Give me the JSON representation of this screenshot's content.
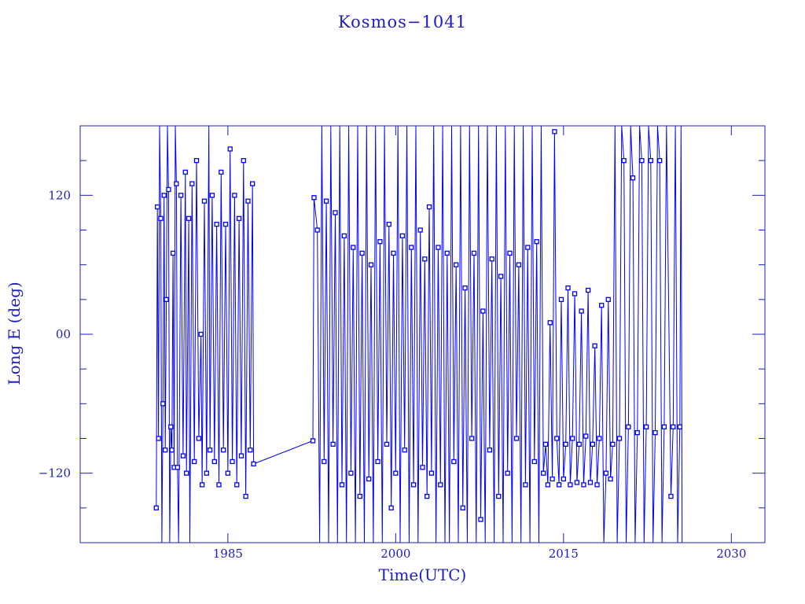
{
  "chart_data": {
    "type": "line",
    "title": "Kosmos−1041",
    "xlabel": "Time(UTC)",
    "ylabel": "Long E (deg)",
    "xlim": [
      1971.8,
      2033.0
    ],
    "ylim": [
      -180,
      180
    ],
    "x_ticks": [
      1985,
      2000,
      2015,
      2030
    ],
    "x_tick_labels": [
      "1985",
      "2000",
      "2015",
      "2030"
    ],
    "y_ticks": [
      -120,
      0,
      120
    ],
    "y_tick_labels": [
      "−120",
      "00",
      "120"
    ],
    "y_minor_step": 30,
    "markers": "open-square",
    "grid": false,
    "colors": {
      "data": "#0000ff",
      "frame": "#1c1cc8"
    },
    "points": [
      [
        1978.6,
        -150
      ],
      [
        1978.7,
        110
      ],
      [
        1978.8,
        -90
      ],
      [
        1978.9,
        180
      ],
      [
        1979.0,
        100
      ],
      [
        1979.1,
        -180
      ],
      [
        1979.2,
        -60
      ],
      [
        1979.3,
        120
      ],
      [
        1979.4,
        -100
      ],
      [
        1979.5,
        30
      ],
      [
        1979.6,
        180
      ],
      [
        1979.7,
        125
      ],
      [
        1979.8,
        -180
      ],
      [
        1979.9,
        -80
      ],
      [
        1980.0,
        -100
      ],
      [
        1980.1,
        70
      ],
      [
        1980.2,
        -115
      ],
      [
        1980.3,
        180
      ],
      [
        1980.4,
        130
      ],
      [
        1980.5,
        -115
      ],
      [
        1980.6,
        -180
      ],
      [
        1980.8,
        120
      ],
      [
        1981.0,
        -105
      ],
      [
        1981.2,
        140
      ],
      [
        1981.3,
        -120
      ],
      [
        1981.5,
        100
      ],
      [
        1981.6,
        -180
      ],
      [
        1981.8,
        130
      ],
      [
        1982.0,
        -110
      ],
      [
        1982.2,
        150
      ],
      [
        1982.4,
        -90
      ],
      [
        1982.6,
        0
      ],
      [
        1982.7,
        -130
      ],
      [
        1982.9,
        115
      ],
      [
        1983.1,
        -120
      ],
      [
        1983.3,
        180
      ],
      [
        1983.4,
        -100
      ],
      [
        1983.6,
        120
      ],
      [
        1983.8,
        -110
      ],
      [
        1984.0,
        95
      ],
      [
        1984.2,
        -130
      ],
      [
        1984.4,
        140
      ],
      [
        1984.6,
        -100
      ],
      [
        1984.8,
        95
      ],
      [
        1985.0,
        -120
      ],
      [
        1985.2,
        160
      ],
      [
        1985.4,
        -110
      ],
      [
        1985.6,
        120
      ],
      [
        1985.8,
        -130
      ],
      [
        1986.0,
        100
      ],
      [
        1986.2,
        -105
      ],
      [
        1986.4,
        150
      ],
      [
        1986.6,
        -140
      ],
      [
        1986.8,
        115
      ],
      [
        1987.0,
        -100
      ],
      [
        1987.2,
        130
      ],
      [
        1987.3,
        -112
      ],
      [
        1992.6,
        -92
      ],
      [
        1992.7,
        118
      ],
      [
        1993.0,
        90
      ],
      [
        1993.2,
        -180
      ],
      [
        1993.4,
        180
      ],
      [
        1993.6,
        -110
      ],
      [
        1993.8,
        115
      ],
      [
        1994.0,
        -180
      ],
      [
        1994.2,
        180
      ],
      [
        1994.4,
        -95
      ],
      [
        1994.6,
        105
      ],
      [
        1994.8,
        -180
      ],
      [
        1995.0,
        180
      ],
      [
        1995.2,
        -130
      ],
      [
        1995.4,
        85
      ],
      [
        1995.6,
        -180
      ],
      [
        1995.8,
        180
      ],
      [
        1996.0,
        -120
      ],
      [
        1996.2,
        75
      ],
      [
        1996.4,
        -180
      ],
      [
        1996.6,
        180
      ],
      [
        1996.8,
        -140
      ],
      [
        1997.0,
        70
      ],
      [
        1997.2,
        -180
      ],
      [
        1997.4,
        180
      ],
      [
        1997.6,
        -125
      ],
      [
        1997.8,
        60
      ],
      [
        1998.0,
        -180
      ],
      [
        1998.2,
        180
      ],
      [
        1998.4,
        -110
      ],
      [
        1998.6,
        80
      ],
      [
        1998.8,
        -180
      ],
      [
        1999.0,
        180
      ],
      [
        1999.2,
        -95
      ],
      [
        1999.4,
        95
      ],
      [
        1999.6,
        -150
      ],
      [
        1999.8,
        70
      ],
      [
        2000.0,
        -120
      ],
      [
        2000.2,
        180
      ],
      [
        2000.4,
        -180
      ],
      [
        2000.6,
        85
      ],
      [
        2000.8,
        -100
      ],
      [
        2001.0,
        180
      ],
      [
        2001.2,
        -180
      ],
      [
        2001.4,
        75
      ],
      [
        2001.6,
        -130
      ],
      [
        2001.8,
        180
      ],
      [
        2002.0,
        -180
      ],
      [
        2002.2,
        90
      ],
      [
        2002.4,
        -115
      ],
      [
        2002.6,
        65
      ],
      [
        2002.8,
        -140
      ],
      [
        2003.0,
        110
      ],
      [
        2003.2,
        -120
      ],
      [
        2003.4,
        180
      ],
      [
        2003.6,
        -180
      ],
      [
        2003.8,
        75
      ],
      [
        2004.0,
        -130
      ],
      [
        2004.2,
        180
      ],
      [
        2004.4,
        -180
      ],
      [
        2004.6,
        70
      ],
      [
        2004.8,
        -180
      ],
      [
        2005.0,
        180
      ],
      [
        2005.2,
        -110
      ],
      [
        2005.4,
        60
      ],
      [
        2005.6,
        -180
      ],
      [
        2005.8,
        180
      ],
      [
        2006.0,
        -150
      ],
      [
        2006.2,
        40
      ],
      [
        2006.4,
        -180
      ],
      [
        2006.6,
        180
      ],
      [
        2006.8,
        -90
      ],
      [
        2007.0,
        70
      ],
      [
        2007.2,
        -180
      ],
      [
        2007.4,
        180
      ],
      [
        2007.6,
        -160
      ],
      [
        2007.8,
        20
      ],
      [
        2008.0,
        -180
      ],
      [
        2008.2,
        180
      ],
      [
        2008.4,
        -100
      ],
      [
        2008.6,
        65
      ],
      [
        2008.8,
        -180
      ],
      [
        2009.0,
        180
      ],
      [
        2009.2,
        -140
      ],
      [
        2009.4,
        50
      ],
      [
        2009.6,
        -180
      ],
      [
        2009.8,
        180
      ],
      [
        2010.0,
        -120
      ],
      [
        2010.2,
        70
      ],
      [
        2010.4,
        -180
      ],
      [
        2010.6,
        180
      ],
      [
        2010.8,
        -90
      ],
      [
        2011.0,
        60
      ],
      [
        2011.2,
        -180
      ],
      [
        2011.4,
        180
      ],
      [
        2011.6,
        -130
      ],
      [
        2011.8,
        75
      ],
      [
        2012.0,
        -180
      ],
      [
        2012.2,
        180
      ],
      [
        2012.4,
        -110
      ],
      [
        2012.6,
        80
      ],
      [
        2012.8,
        -180
      ],
      [
        2013.0,
        180
      ],
      [
        2013.2,
        -120
      ],
      [
        2013.4,
        -95
      ],
      [
        2013.6,
        -130
      ],
      [
        2013.8,
        10
      ],
      [
        2014.0,
        -125
      ],
      [
        2014.2,
        175
      ],
      [
        2014.4,
        -90
      ],
      [
        2014.6,
        -130
      ],
      [
        2014.8,
        30
      ],
      [
        2015.0,
        -125
      ],
      [
        2015.2,
        -95
      ],
      [
        2015.4,
        40
      ],
      [
        2015.6,
        -130
      ],
      [
        2015.8,
        -90
      ],
      [
        2016.0,
        35
      ],
      [
        2016.2,
        -128
      ],
      [
        2016.4,
        -95
      ],
      [
        2016.6,
        20
      ],
      [
        2016.8,
        -130
      ],
      [
        2017.0,
        -88
      ],
      [
        2017.2,
        38
      ],
      [
        2017.4,
        -128
      ],
      [
        2017.6,
        -95
      ],
      [
        2017.8,
        -10
      ],
      [
        2018.0,
        -130
      ],
      [
        2018.2,
        -90
      ],
      [
        2018.4,
        25
      ],
      [
        2018.6,
        -180
      ],
      [
        2018.8,
        -120
      ],
      [
        2019.0,
        30
      ],
      [
        2019.2,
        -125
      ],
      [
        2019.4,
        -95
      ],
      [
        2019.6,
        180
      ],
      [
        2019.8,
        -180
      ],
      [
        2020.0,
        -90
      ],
      [
        2020.2,
        180
      ],
      [
        2020.4,
        150
      ],
      [
        2020.6,
        -180
      ],
      [
        2020.8,
        -80
      ],
      [
        2021.0,
        180
      ],
      [
        2021.2,
        135
      ],
      [
        2021.4,
        -180
      ],
      [
        2021.6,
        -85
      ],
      [
        2021.8,
        180
      ],
      [
        2022.0,
        150
      ],
      [
        2022.2,
        -180
      ],
      [
        2022.4,
        -80
      ],
      [
        2022.6,
        180
      ],
      [
        2022.8,
        150
      ],
      [
        2023.0,
        -180
      ],
      [
        2023.2,
        -85
      ],
      [
        2023.4,
        180
      ],
      [
        2023.6,
        150
      ],
      [
        2023.8,
        -180
      ],
      [
        2024.0,
        -80
      ],
      [
        2024.2,
        180
      ],
      [
        2024.6,
        -140
      ],
      [
        2024.8,
        -80
      ],
      [
        2025.0,
        180
      ],
      [
        2025.2,
        -180
      ],
      [
        2025.4,
        -80
      ],
      [
        2025.5,
        180
      ],
      [
        2025.6,
        -180
      ]
    ]
  }
}
